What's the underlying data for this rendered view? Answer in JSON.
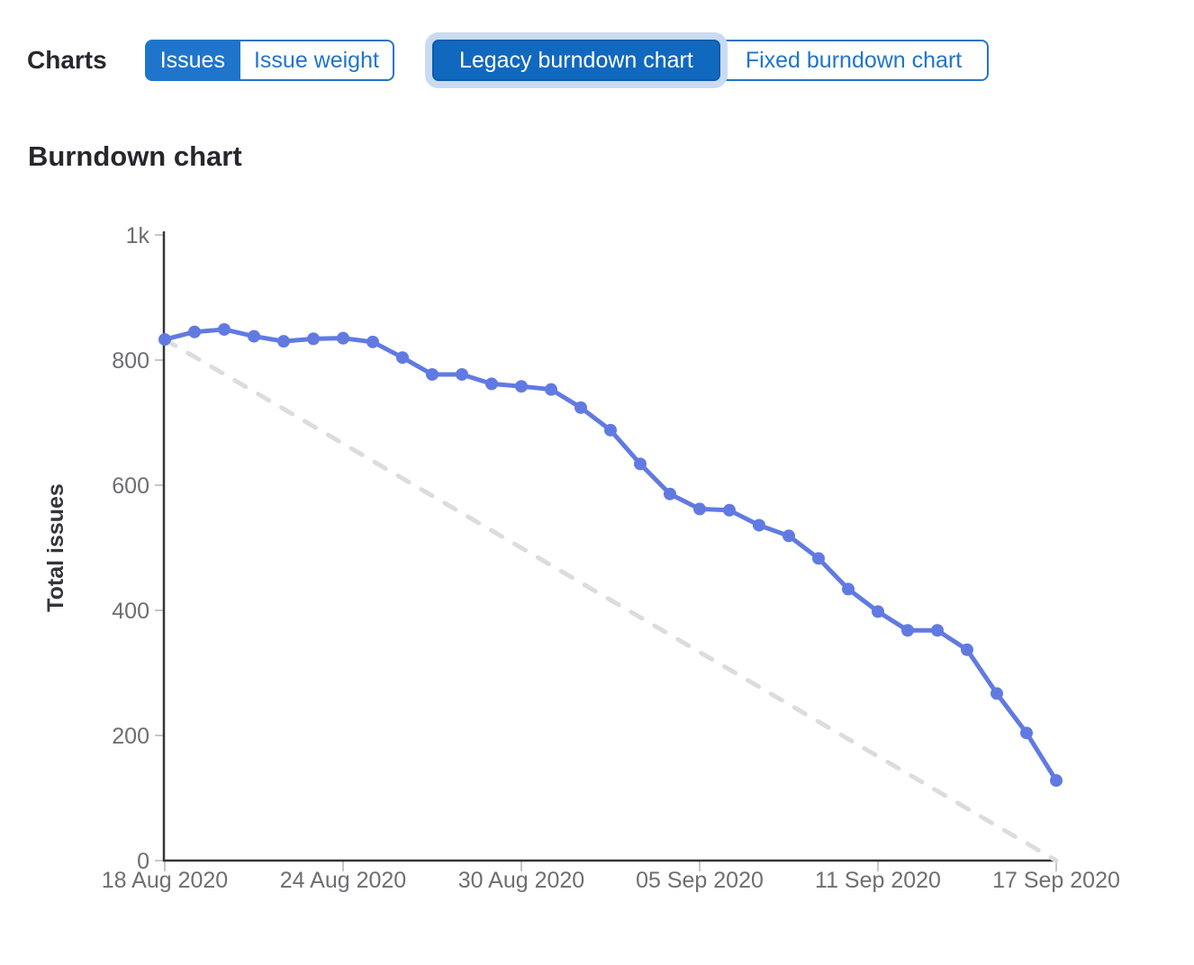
{
  "header": {
    "charts_label": "Charts",
    "chart_scope_toggle": {
      "options": [
        {
          "label": "Issues",
          "selected": true
        },
        {
          "label": "Issue weight",
          "selected": false
        }
      ]
    },
    "burndown_version_toggle": {
      "options": [
        {
          "label": "Legacy burndown chart",
          "selected": true,
          "focused": true
        },
        {
          "label": "Fixed burndown chart",
          "selected": false
        }
      ]
    }
  },
  "section_title": "Burndown chart",
  "colors": {
    "accent_blue": "#1f75cb",
    "selected_button_bg": "#1168bf",
    "selected_button_border": "#0b5cad",
    "focus_ring": "#c9daf2",
    "line_blue": "#617ae2",
    "guideline_gray": "#dcdcde",
    "axis_dark": "#35343a",
    "tick_gray": "#c7c7c9",
    "tick_label_gray": "#6e6e73"
  },
  "chart_data": {
    "type": "line",
    "title": "Burndown chart",
    "xlabel": "",
    "ylabel": "Total issues",
    "ylim": [
      0,
      1000
    ],
    "grid": false,
    "legend": "none",
    "y_ticks": {
      "values": [
        0,
        200,
        400,
        600,
        800,
        1000
      ],
      "labels": [
        "0",
        "200",
        "400",
        "600",
        "800",
        "1k"
      ]
    },
    "x_tick_labels": [
      "18 Aug 2020",
      "24 Aug 2020",
      "30 Aug 2020",
      "05 Sep 2020",
      "11 Sep 2020",
      "17 Sep 2020"
    ],
    "categories": [
      "18 Aug 2020",
      "19 Aug 2020",
      "20 Aug 2020",
      "21 Aug 2020",
      "22 Aug 2020",
      "23 Aug 2020",
      "24 Aug 2020",
      "25 Aug 2020",
      "26 Aug 2020",
      "27 Aug 2020",
      "28 Aug 2020",
      "29 Aug 2020",
      "30 Aug 2020",
      "31 Aug 2020",
      "01 Sep 2020",
      "02 Sep 2020",
      "03 Sep 2020",
      "04 Sep 2020",
      "05 Sep 2020",
      "06 Sep 2020",
      "07 Sep 2020",
      "08 Sep 2020",
      "09 Sep 2020",
      "10 Sep 2020",
      "11 Sep 2020",
      "12 Sep 2020",
      "13 Sep 2020",
      "14 Sep 2020",
      "15 Sep 2020",
      "16 Sep 2020",
      "17 Sep 2020"
    ],
    "series": [
      {
        "name": "remaining-issues",
        "style": "solid-line-with-dots",
        "color": "#617ae2",
        "values": [
          833,
          845,
          849,
          838,
          830,
          834,
          835,
          829,
          804,
          777,
          777,
          762,
          758,
          753,
          724,
          688,
          634,
          586,
          562,
          560,
          536,
          519,
          483,
          434,
          398,
          368,
          368,
          337,
          267,
          204,
          128
        ]
      },
      {
        "name": "ideal-guideline",
        "style": "dashed-line",
        "color": "#dcdcde",
        "start": 833,
        "end": 0
      }
    ]
  }
}
